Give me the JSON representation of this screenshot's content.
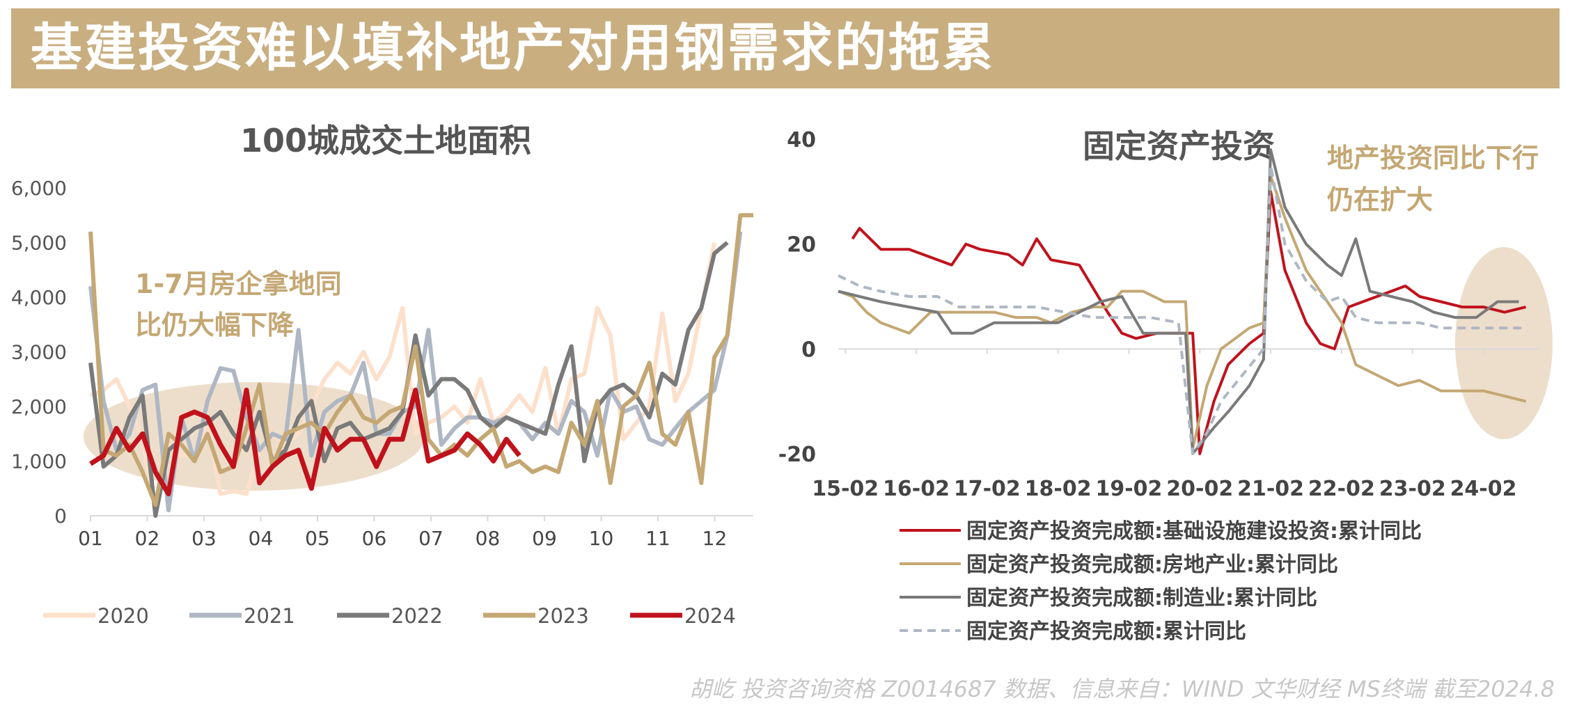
{
  "banner": {
    "title": "基建投资难以填补地产对用钢需求的拖累"
  },
  "footer": {
    "text": "胡屹 投资咨询资格 Z0014687  数据、信息来自：WIND 文华财经 MS终端   截至2024.8"
  },
  "colors": {
    "banner": "#c9ae80",
    "s2020": "#fde0cb",
    "s2021": "#aeb7c3",
    "s2022": "#7a7a7a",
    "s2023": "#c4a773",
    "s2024": "#c0121c",
    "note": "#c4a773",
    "ellipse": "#ecdcc8"
  },
  "chart_data": [
    {
      "type": "line",
      "title": "100城成交土地面积",
      "xlabel": "",
      "ylabel": "",
      "ylim": [
        0,
        6000
      ],
      "yticks": [
        "0",
        "1,000",
        "2,000",
        "3,000",
        "4,000",
        "5,000",
        "6,000"
      ],
      "xticks": [
        "01",
        "02",
        "03",
        "04",
        "05",
        "06",
        "07",
        "08",
        "09",
        "10",
        "11",
        "12"
      ],
      "annotation": [
        "1-7月房企拿地同",
        "比仍大幅下降"
      ],
      "legend_position": "bottom",
      "series": [
        {
          "name": "2020",
          "values": [
            2200,
            2300,
            2500,
            2000,
            1400,
            150,
            1300,
            1100,
            1100,
            1700,
            400,
            450,
            400,
            1200,
            1500,
            1300,
            1500,
            2000,
            2500,
            2800,
            2600,
            3000,
            2500,
            2900,
            3800,
            1500,
            1700,
            1800,
            2000,
            1700,
            2500,
            1700,
            1900,
            2200,
            1900,
            2700,
            1500,
            2500,
            2600,
            3800,
            3300,
            1400,
            1700,
            2000,
            3700,
            2100,
            2600,
            3800,
            5000
          ]
        },
        {
          "name": "2021",
          "values": [
            4200,
            2100,
            1200,
            1500,
            2300,
            2400,
            100,
            1800,
            1000,
            2100,
            2700,
            2650,
            1800,
            1200,
            1500,
            1400,
            3400,
            1100,
            1900,
            2100,
            2200,
            2800,
            1500,
            1500,
            1900,
            2000,
            3400,
            1300,
            1600,
            1800,
            1800,
            1700,
            1800,
            1700,
            1400,
            1700,
            1500,
            2100,
            1900,
            1100,
            2300,
            1900,
            2000,
            1400,
            1300,
            1600,
            1900,
            2100,
            2300,
            3300,
            5200
          ]
        },
        {
          "name": "2022",
          "values": [
            2800,
            900,
            1100,
            1800,
            2200,
            0,
            1200,
            1400,
            1600,
            1700,
            1900,
            1500,
            1200,
            1900,
            1000,
            1200,
            1800,
            2100,
            1000,
            1600,
            1700,
            1400,
            1500,
            1600,
            1900,
            3300,
            2200,
            2500,
            2500,
            2300,
            1800,
            1600,
            1800,
            1700,
            1600,
            1500,
            2400,
            3100,
            1000,
            2000,
            2300,
            2400,
            2200,
            1800,
            2600,
            2400,
            3400,
            3800,
            4800,
            5000
          ]
        },
        {
          "name": "2023",
          "values": [
            5200,
            1200,
            1100,
            1300,
            800,
            200,
            1500,
            1300,
            1000,
            1500,
            800,
            900,
            1600,
            2400,
            900,
            1500,
            1600,
            1700,
            1500,
            1900,
            2200,
            1800,
            1700,
            1900,
            2000,
            3100,
            1400,
            1100,
            1300,
            1100,
            1400,
            1600,
            900,
            1000,
            800,
            900,
            800,
            1700,
            1300,
            2100,
            600,
            2000,
            2200,
            2800,
            1500,
            1300,
            1900,
            600,
            2900,
            3300,
            5500,
            5500
          ]
        },
        {
          "name": "2024",
          "values": [
            950,
            1100,
            1600,
            1200,
            1500,
            800,
            400,
            1800,
            1900,
            1800,
            1300,
            900,
            2300,
            600,
            900,
            1100,
            1200,
            500,
            1600,
            1200,
            1400,
            1400,
            900,
            1400,
            1400,
            2300,
            1000,
            1100,
            1200,
            1500,
            1300,
            1000,
            1400,
            1100
          ]
        }
      ]
    },
    {
      "type": "line",
      "title": "固定资产投资",
      "xlabel": "",
      "ylabel": "",
      "ylim": [
        -20,
        40
      ],
      "yticks": [
        "-20",
        "0",
        "20",
        "40"
      ],
      "xticks": [
        "15-02",
        "16-02",
        "17-02",
        "18-02",
        "19-02",
        "20-02",
        "21-02",
        "22-02",
        "23-02",
        "24-02"
      ],
      "annotation": [
        "地产投资同比下行",
        "仍在扩大"
      ],
      "legend_position": "bottom",
      "series": [
        {
          "name": "固定资产投资完成额:基础设施建设投资:累计同比",
          "values": [
            [
              15.2,
              21
            ],
            [
              15.3,
              23
            ],
            [
              15.6,
              19
            ],
            [
              16.0,
              19
            ],
            [
              16.4,
              17
            ],
            [
              16.6,
              16
            ],
            [
              16.8,
              20
            ],
            [
              17.0,
              19
            ],
            [
              17.4,
              18
            ],
            [
              17.6,
              16
            ],
            [
              17.8,
              21
            ],
            [
              18.0,
              17
            ],
            [
              18.4,
              16
            ],
            [
              18.8,
              7
            ],
            [
              19.0,
              3
            ],
            [
              19.2,
              2
            ],
            [
              19.5,
              3
            ],
            [
              19.8,
              3
            ],
            [
              20.0,
              3
            ],
            [
              20.1,
              -20
            ],
            [
              20.3,
              -10
            ],
            [
              20.5,
              -3
            ],
            [
              20.8,
              1
            ],
            [
              21.0,
              3
            ],
            [
              21.1,
              30
            ],
            [
              21.3,
              15
            ],
            [
              21.6,
              5
            ],
            [
              21.8,
              1
            ],
            [
              22.0,
              0
            ],
            [
              22.2,
              8
            ],
            [
              22.4,
              9
            ],
            [
              22.6,
              10
            ],
            [
              22.8,
              11
            ],
            [
              23.0,
              12
            ],
            [
              23.2,
              10
            ],
            [
              23.5,
              9
            ],
            [
              23.8,
              8
            ],
            [
              24.1,
              8
            ],
            [
              24.4,
              7
            ],
            [
              24.7,
              8
            ]
          ]
        },
        {
          "name": "固定资产投资完成额:房地产业:累计同比",
          "values": [
            [
              15.0,
              11
            ],
            [
              15.2,
              10
            ],
            [
              15.4,
              7
            ],
            [
              15.6,
              5
            ],
            [
              15.8,
              4
            ],
            [
              16.0,
              3
            ],
            [
              16.3,
              7
            ],
            [
              16.6,
              7
            ],
            [
              16.9,
              7
            ],
            [
              17.2,
              7
            ],
            [
              17.5,
              6
            ],
            [
              17.8,
              6
            ],
            [
              18.0,
              5
            ],
            [
              18.3,
              7
            ],
            [
              18.6,
              8
            ],
            [
              18.8,
              8
            ],
            [
              19.0,
              11
            ],
            [
              19.3,
              11
            ],
            [
              19.6,
              9
            ],
            [
              19.9,
              9
            ],
            [
              20.0,
              -19
            ],
            [
              20.2,
              -7
            ],
            [
              20.4,
              0
            ],
            [
              20.6,
              2
            ],
            [
              20.8,
              4
            ],
            [
              21.0,
              5
            ],
            [
              21.1,
              33
            ],
            [
              21.3,
              25
            ],
            [
              21.6,
              15
            ],
            [
              21.9,
              9
            ],
            [
              22.1,
              5
            ],
            [
              22.3,
              -3
            ],
            [
              22.6,
              -5
            ],
            [
              22.9,
              -7
            ],
            [
              23.2,
              -6
            ],
            [
              23.5,
              -8
            ],
            [
              23.8,
              -8
            ],
            [
              24.1,
              -8
            ],
            [
              24.4,
              -9
            ],
            [
              24.7,
              -10
            ]
          ]
        },
        {
          "name": "固定资产投资完成额:制造业:累计同比",
          "values": [
            [
              15.0,
              11
            ],
            [
              15.3,
              10
            ],
            [
              15.6,
              9
            ],
            [
              16.0,
              8
            ],
            [
              16.4,
              7
            ],
            [
              16.6,
              3
            ],
            [
              16.9,
              3
            ],
            [
              17.2,
              5
            ],
            [
              17.5,
              5
            ],
            [
              17.8,
              5
            ],
            [
              18.1,
              5
            ],
            [
              18.4,
              7
            ],
            [
              18.7,
              9
            ],
            [
              19.0,
              10
            ],
            [
              19.3,
              3
            ],
            [
              19.6,
              3
            ],
            [
              19.9,
              3
            ],
            [
              20.0,
              -20
            ],
            [
              20.3,
              -15
            ],
            [
              20.5,
              -12
            ],
            [
              20.8,
              -7
            ],
            [
              21.0,
              -2
            ],
            [
              21.1,
              38
            ],
            [
              21.3,
              27
            ],
            [
              21.6,
              20
            ],
            [
              21.9,
              16
            ],
            [
              22.1,
              14
            ],
            [
              22.3,
              21
            ],
            [
              22.5,
              11
            ],
            [
              22.8,
              10
            ],
            [
              23.1,
              9
            ],
            [
              23.4,
              7
            ],
            [
              23.7,
              6
            ],
            [
              24.0,
              6
            ],
            [
              24.3,
              9
            ],
            [
              24.6,
              9
            ]
          ]
        },
        {
          "name": "固定资产投资完成额:累计同比",
          "values": [
            [
              15.0,
              14
            ],
            [
              15.3,
              12
            ],
            [
              15.6,
              11
            ],
            [
              16.0,
              10
            ],
            [
              16.4,
              10
            ],
            [
              16.7,
              8
            ],
            [
              17.0,
              8
            ],
            [
              17.4,
              8
            ],
            [
              17.8,
              8
            ],
            [
              18.2,
              7
            ],
            [
              18.6,
              6
            ],
            [
              19.0,
              6
            ],
            [
              19.4,
              6
            ],
            [
              19.8,
              5
            ],
            [
              20.0,
              -20
            ],
            [
              20.2,
              -16
            ],
            [
              20.4,
              -10
            ],
            [
              20.7,
              -5
            ],
            [
              21.0,
              0
            ],
            [
              21.1,
              35
            ],
            [
              21.3,
              20
            ],
            [
              21.6,
              13
            ],
            [
              21.9,
              9
            ],
            [
              22.1,
              10
            ],
            [
              22.3,
              6
            ],
            [
              22.6,
              5
            ],
            [
              22.9,
              5
            ],
            [
              23.2,
              5
            ],
            [
              23.5,
              4
            ],
            [
              23.8,
              4
            ],
            [
              24.1,
              4
            ],
            [
              24.4,
              4
            ],
            [
              24.7,
              4
            ]
          ]
        }
      ]
    }
  ]
}
